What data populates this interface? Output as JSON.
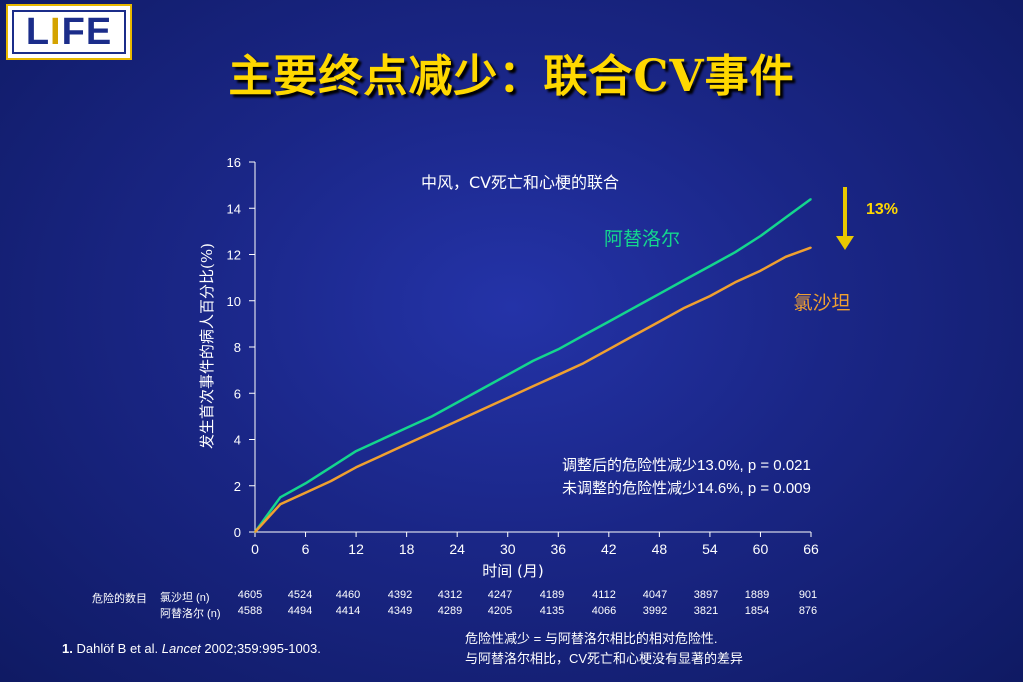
{
  "logo": {
    "prefix": "L",
    "highlight": "I",
    "suffix": "FE"
  },
  "title": "主要终点减少：联合CV事件",
  "chart_data": {
    "type": "line",
    "title": "中风，CV死亡和心梗的联合",
    "xlabel": "时间 (月)",
    "ylabel": "发生首次事件的病人百分比(%)",
    "xlim": [
      0,
      66
    ],
    "ylim": [
      0,
      16
    ],
    "x_ticks": [
      "0",
      "6",
      "12",
      "18",
      "24",
      "30",
      "36",
      "42",
      "48",
      "54",
      "60",
      "66"
    ],
    "y_ticks": [
      "0",
      "2",
      "4",
      "6",
      "8",
      "10",
      "12",
      "14",
      "16"
    ],
    "grid": false,
    "series": [
      {
        "name": "阿替洛尔",
        "color": "#14d68e",
        "x": [
          0,
          3,
          6,
          9,
          12,
          15,
          18,
          21,
          24,
          27,
          30,
          33,
          36,
          39,
          42,
          45,
          48,
          51,
          54,
          57,
          60,
          63,
          66
        ],
        "y": [
          0,
          1.5,
          2.1,
          2.8,
          3.5,
          4.0,
          4.5,
          5.0,
          5.6,
          6.2,
          6.8,
          7.4,
          7.9,
          8.5,
          9.1,
          9.7,
          10.3,
          10.9,
          11.5,
          12.1,
          12.8,
          13.6,
          14.4
        ]
      },
      {
        "name": "氯沙坦",
        "color": "#f0a030",
        "x": [
          0,
          3,
          6,
          9,
          12,
          15,
          18,
          21,
          24,
          27,
          30,
          33,
          36,
          39,
          42,
          45,
          48,
          51,
          54,
          57,
          60,
          63,
          66
        ],
        "y": [
          0,
          1.2,
          1.7,
          2.2,
          2.8,
          3.3,
          3.8,
          4.3,
          4.8,
          5.3,
          5.8,
          6.3,
          6.8,
          7.3,
          7.9,
          8.5,
          9.1,
          9.7,
          10.2,
          10.8,
          11.3,
          11.9,
          12.3
        ]
      }
    ],
    "annotation": "13%"
  },
  "stats": {
    "line1": "调整后的危险性减少13.0%,   p = 0.021",
    "line2": "未调整的危险性减少14.6%,   p = 0.009"
  },
  "risk_table": {
    "header": "危险的数目",
    "rows": [
      {
        "label": "氯沙坦 (n)",
        "values": [
          "4605",
          "4524",
          "4460",
          "4392",
          "4312",
          "4247",
          "4189",
          "4112",
          "4047",
          "3897",
          "1889",
          "901"
        ]
      },
      {
        "label": "阿替洛尔 (n)",
        "values": [
          "4588",
          "4494",
          "4414",
          "4349",
          "4289",
          "4205",
          "4135",
          "4066",
          "3992",
          "3821",
          "1854",
          "876"
        ]
      }
    ]
  },
  "reference": {
    "number": "1.",
    "authors": "Dahlöf B et al.",
    "journal": "Lancet",
    "citation": "2002;359:995-1003."
  },
  "footnote": {
    "line1": "危险性减少 = 与阿替洛尔相比的相对危险性.",
    "line2": "与阿替洛尔相比，CV死亡和心梗没有显著的差异"
  }
}
